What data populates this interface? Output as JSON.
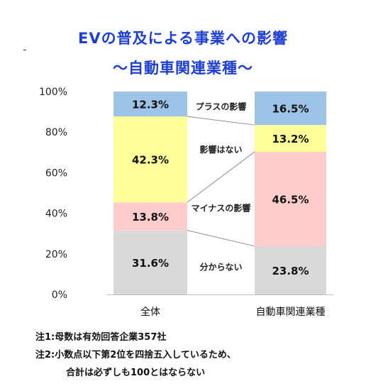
{
  "title": "EVの普及による事業への影響",
  "subtitle": "～自動車関連業種～",
  "chart_data": {
    "type": "bar",
    "stacked": true,
    "percent": true,
    "categories": [
      "全体",
      "自動車関連業種"
    ],
    "series": [
      {
        "name": "分からない",
        "values": [
          31.6,
          23.8
        ],
        "color": "#d9d9d9"
      },
      {
        "name": "マイナスの影響",
        "values": [
          13.8,
          46.5
        ],
        "color": "#ffcccc"
      },
      {
        "name": "影響はない",
        "values": [
          42.3,
          13.2
        ],
        "color": "#ffff99"
      },
      {
        "name": "プラスの影響",
        "values": [
          12.3,
          16.5
        ],
        "color": "#9dc3e6"
      }
    ],
    "data_labels": [
      [
        "31.6%",
        "13.8%",
        "42.3%",
        "12.3%"
      ],
      [
        "23.8%",
        "46.5%",
        "13.2%",
        "16.5%"
      ]
    ],
    "yticks": [
      "0%",
      "20%",
      "40%",
      "60%",
      "80%",
      "100%"
    ],
    "ylim": [
      0,
      100
    ],
    "legend": "between-bars"
  },
  "notes": [
    "注1:母数は有効回答企業357社",
    "注2:小数点以下第2位を四捨五入しているため、",
    "合計は必ずしも100とはならない"
  ]
}
